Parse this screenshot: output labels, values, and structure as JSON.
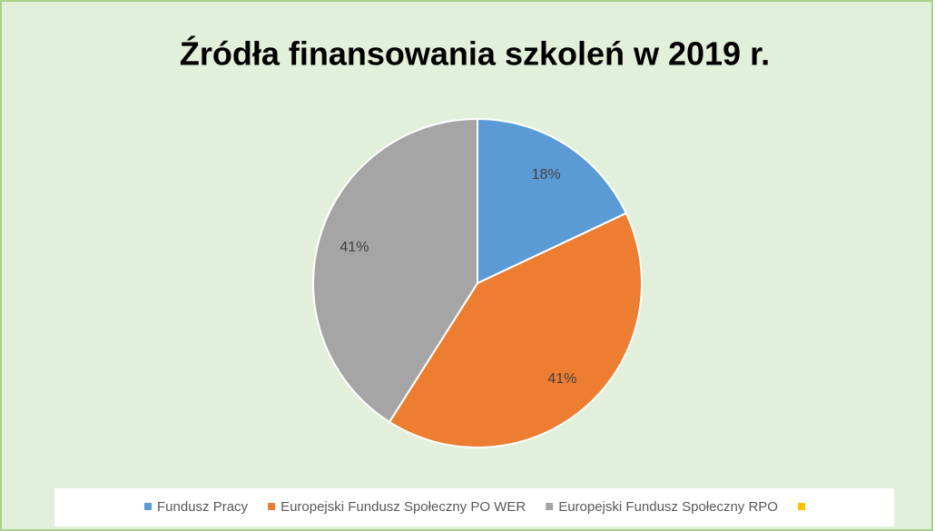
{
  "chart_data": {
    "type": "pie",
    "title": "Źródła finansowania szkoleń w 2019 r.",
    "categories": [
      "Fundusz Pracy",
      "Europejski Fundusz Społeczny PO WER",
      "Europejski Fundusz Społeczny RPO",
      null
    ],
    "values": [
      18,
      41,
      41,
      0
    ],
    "value_labels": [
      "18%",
      "41%",
      "41%",
      null
    ],
    "colors": [
      "#5b9bd5",
      "#ed7d31",
      "#a5a5a5",
      "#ffc000"
    ],
    "legend": "bottom"
  }
}
